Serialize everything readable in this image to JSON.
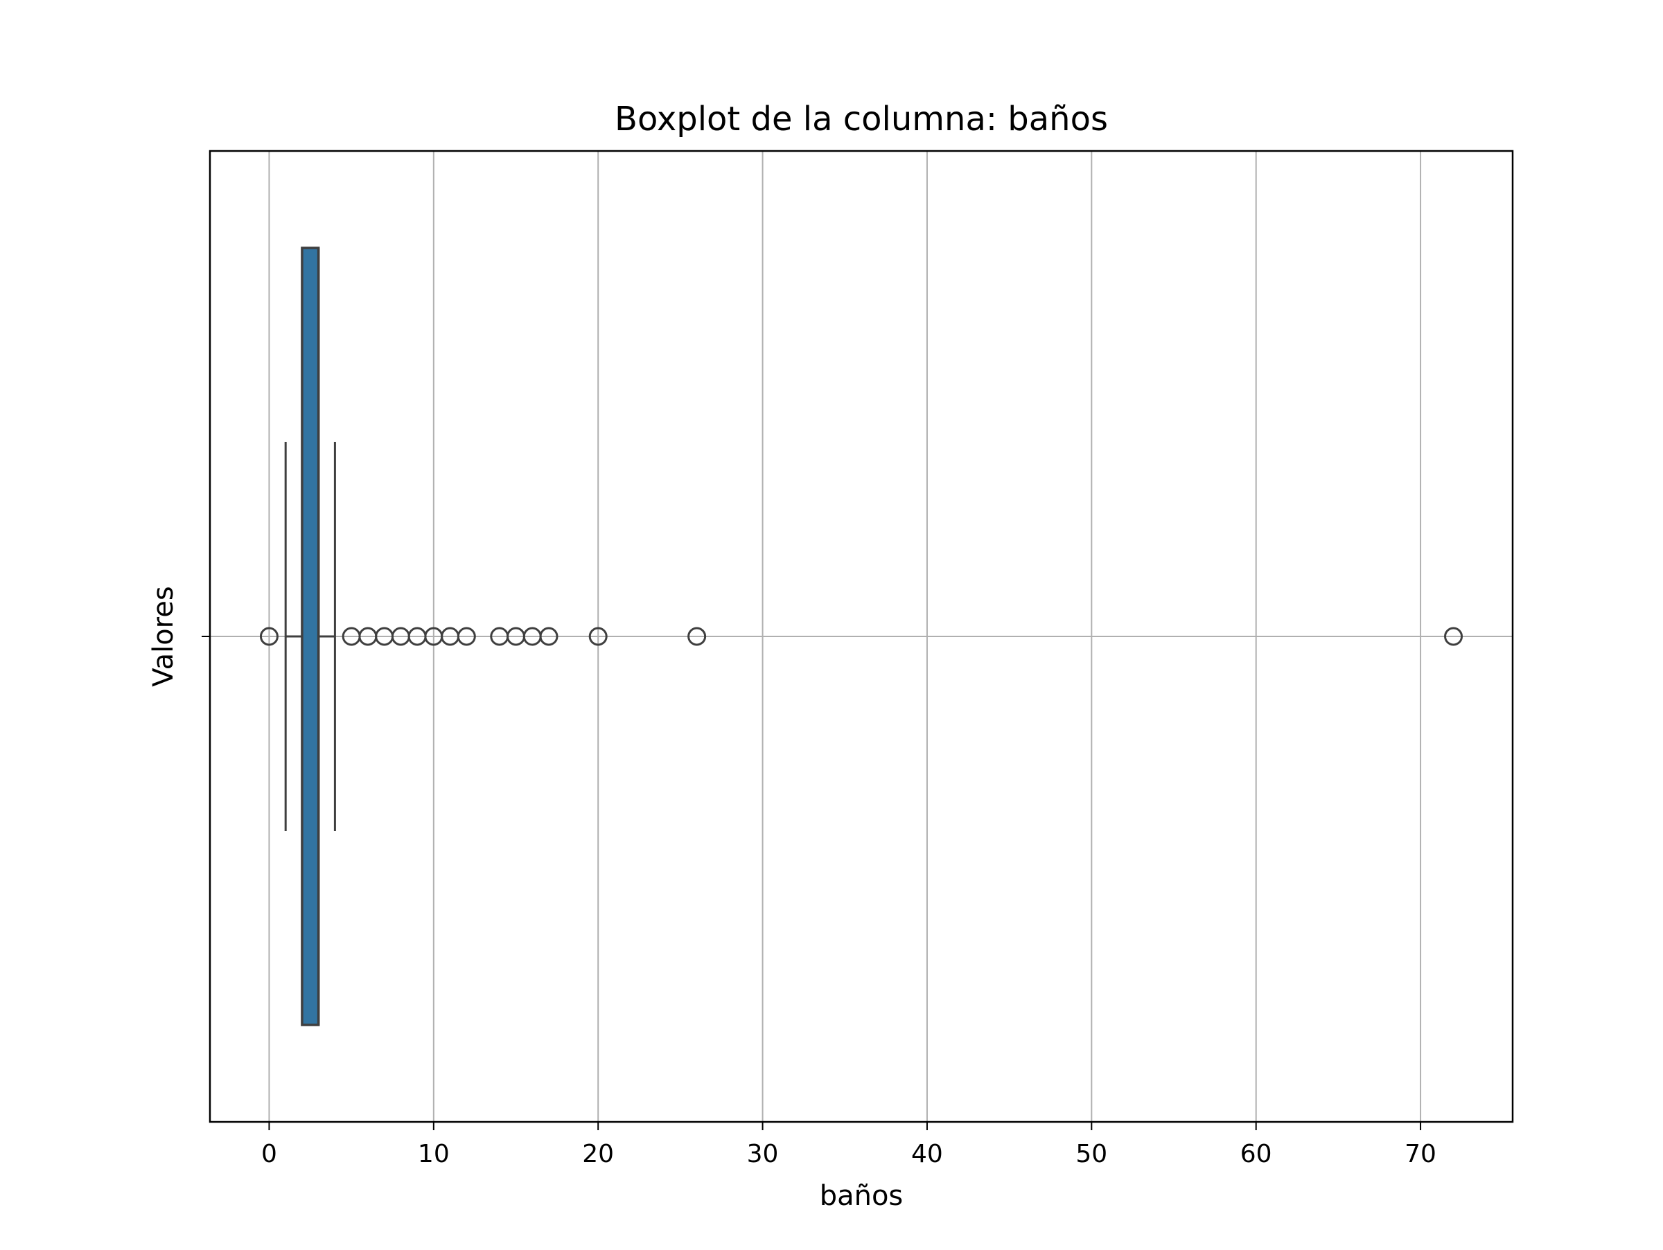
{
  "chart_data": {
    "type": "boxplot",
    "title": "Boxplot de la columna: baños",
    "xlabel": "baños",
    "ylabel": "Valores",
    "orientation": "horizontal",
    "xlim": [
      -3.6,
      75.6
    ],
    "xticks": [
      0,
      10,
      20,
      30,
      40,
      50,
      60,
      70
    ],
    "grid": true,
    "box": {
      "whisker_low": 1,
      "q1": 2,
      "median": 3,
      "q3": 3,
      "whisker_high": 4,
      "fill_color": "#3274a1",
      "edge_color": "#3f3f3f"
    },
    "outliers": [
      0,
      5,
      6,
      7,
      8,
      9,
      10,
      11,
      12,
      14,
      15,
      16,
      17,
      20,
      26,
      72
    ]
  }
}
